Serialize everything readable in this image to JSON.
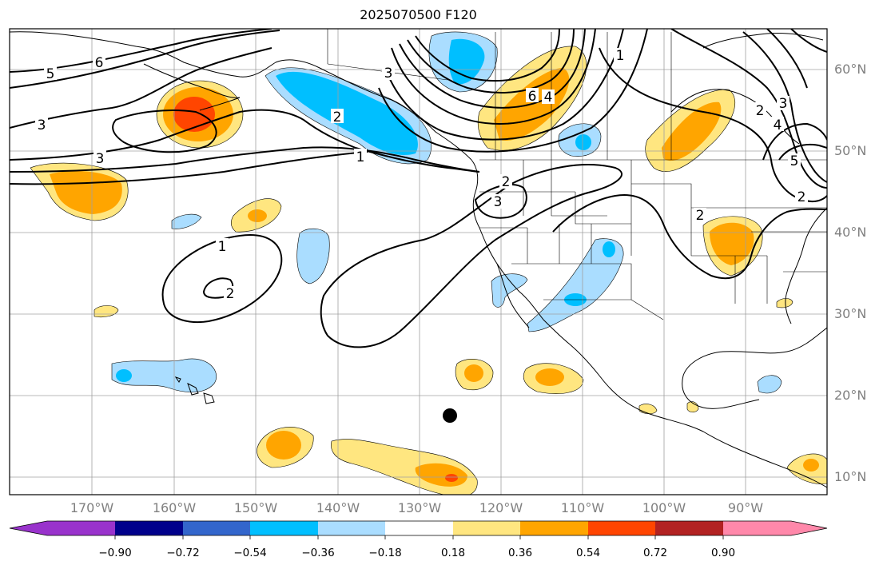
{
  "title": "2025070500 F120",
  "lon_labels": [
    "170°W",
    "160°W",
    "150°W",
    "140°W",
    "130°W",
    "120°W",
    "110°W",
    "100°W",
    "90°W"
  ],
  "lat_labels": [
    "60°N",
    "50°N",
    "40°N",
    "30°N",
    "20°N",
    "10°N"
  ],
  "colorbar": {
    "labels": [
      "−0.90",
      "−0.72",
      "−0.54",
      "−0.36",
      "−0.18",
      "0.18",
      "0.36",
      "0.54",
      "0.72",
      "0.90"
    ],
    "colors": [
      "#9933cc",
      "#00008b",
      "#3366cc",
      "#00bfff",
      "#aaddff",
      "#ffffff",
      "#ffe680",
      "#ffa500",
      "#ff4500",
      "#b22222",
      "#ff88aa"
    ]
  },
  "contour_labels": {
    "c1": "5",
    "c2": "6",
    "c3": "3",
    "c4": "3",
    "c5": "2",
    "c6": "1",
    "c7": "1",
    "c8": "2",
    "c9": "3",
    "c10": "6",
    "c11": "4",
    "c12": "2",
    "c13": "3",
    "c14": "1",
    "c15": "2",
    "c16": "3",
    "c17": "4",
    "c18": "5",
    "c19": "2",
    "c20": "2"
  },
  "marker": "storm-center"
}
